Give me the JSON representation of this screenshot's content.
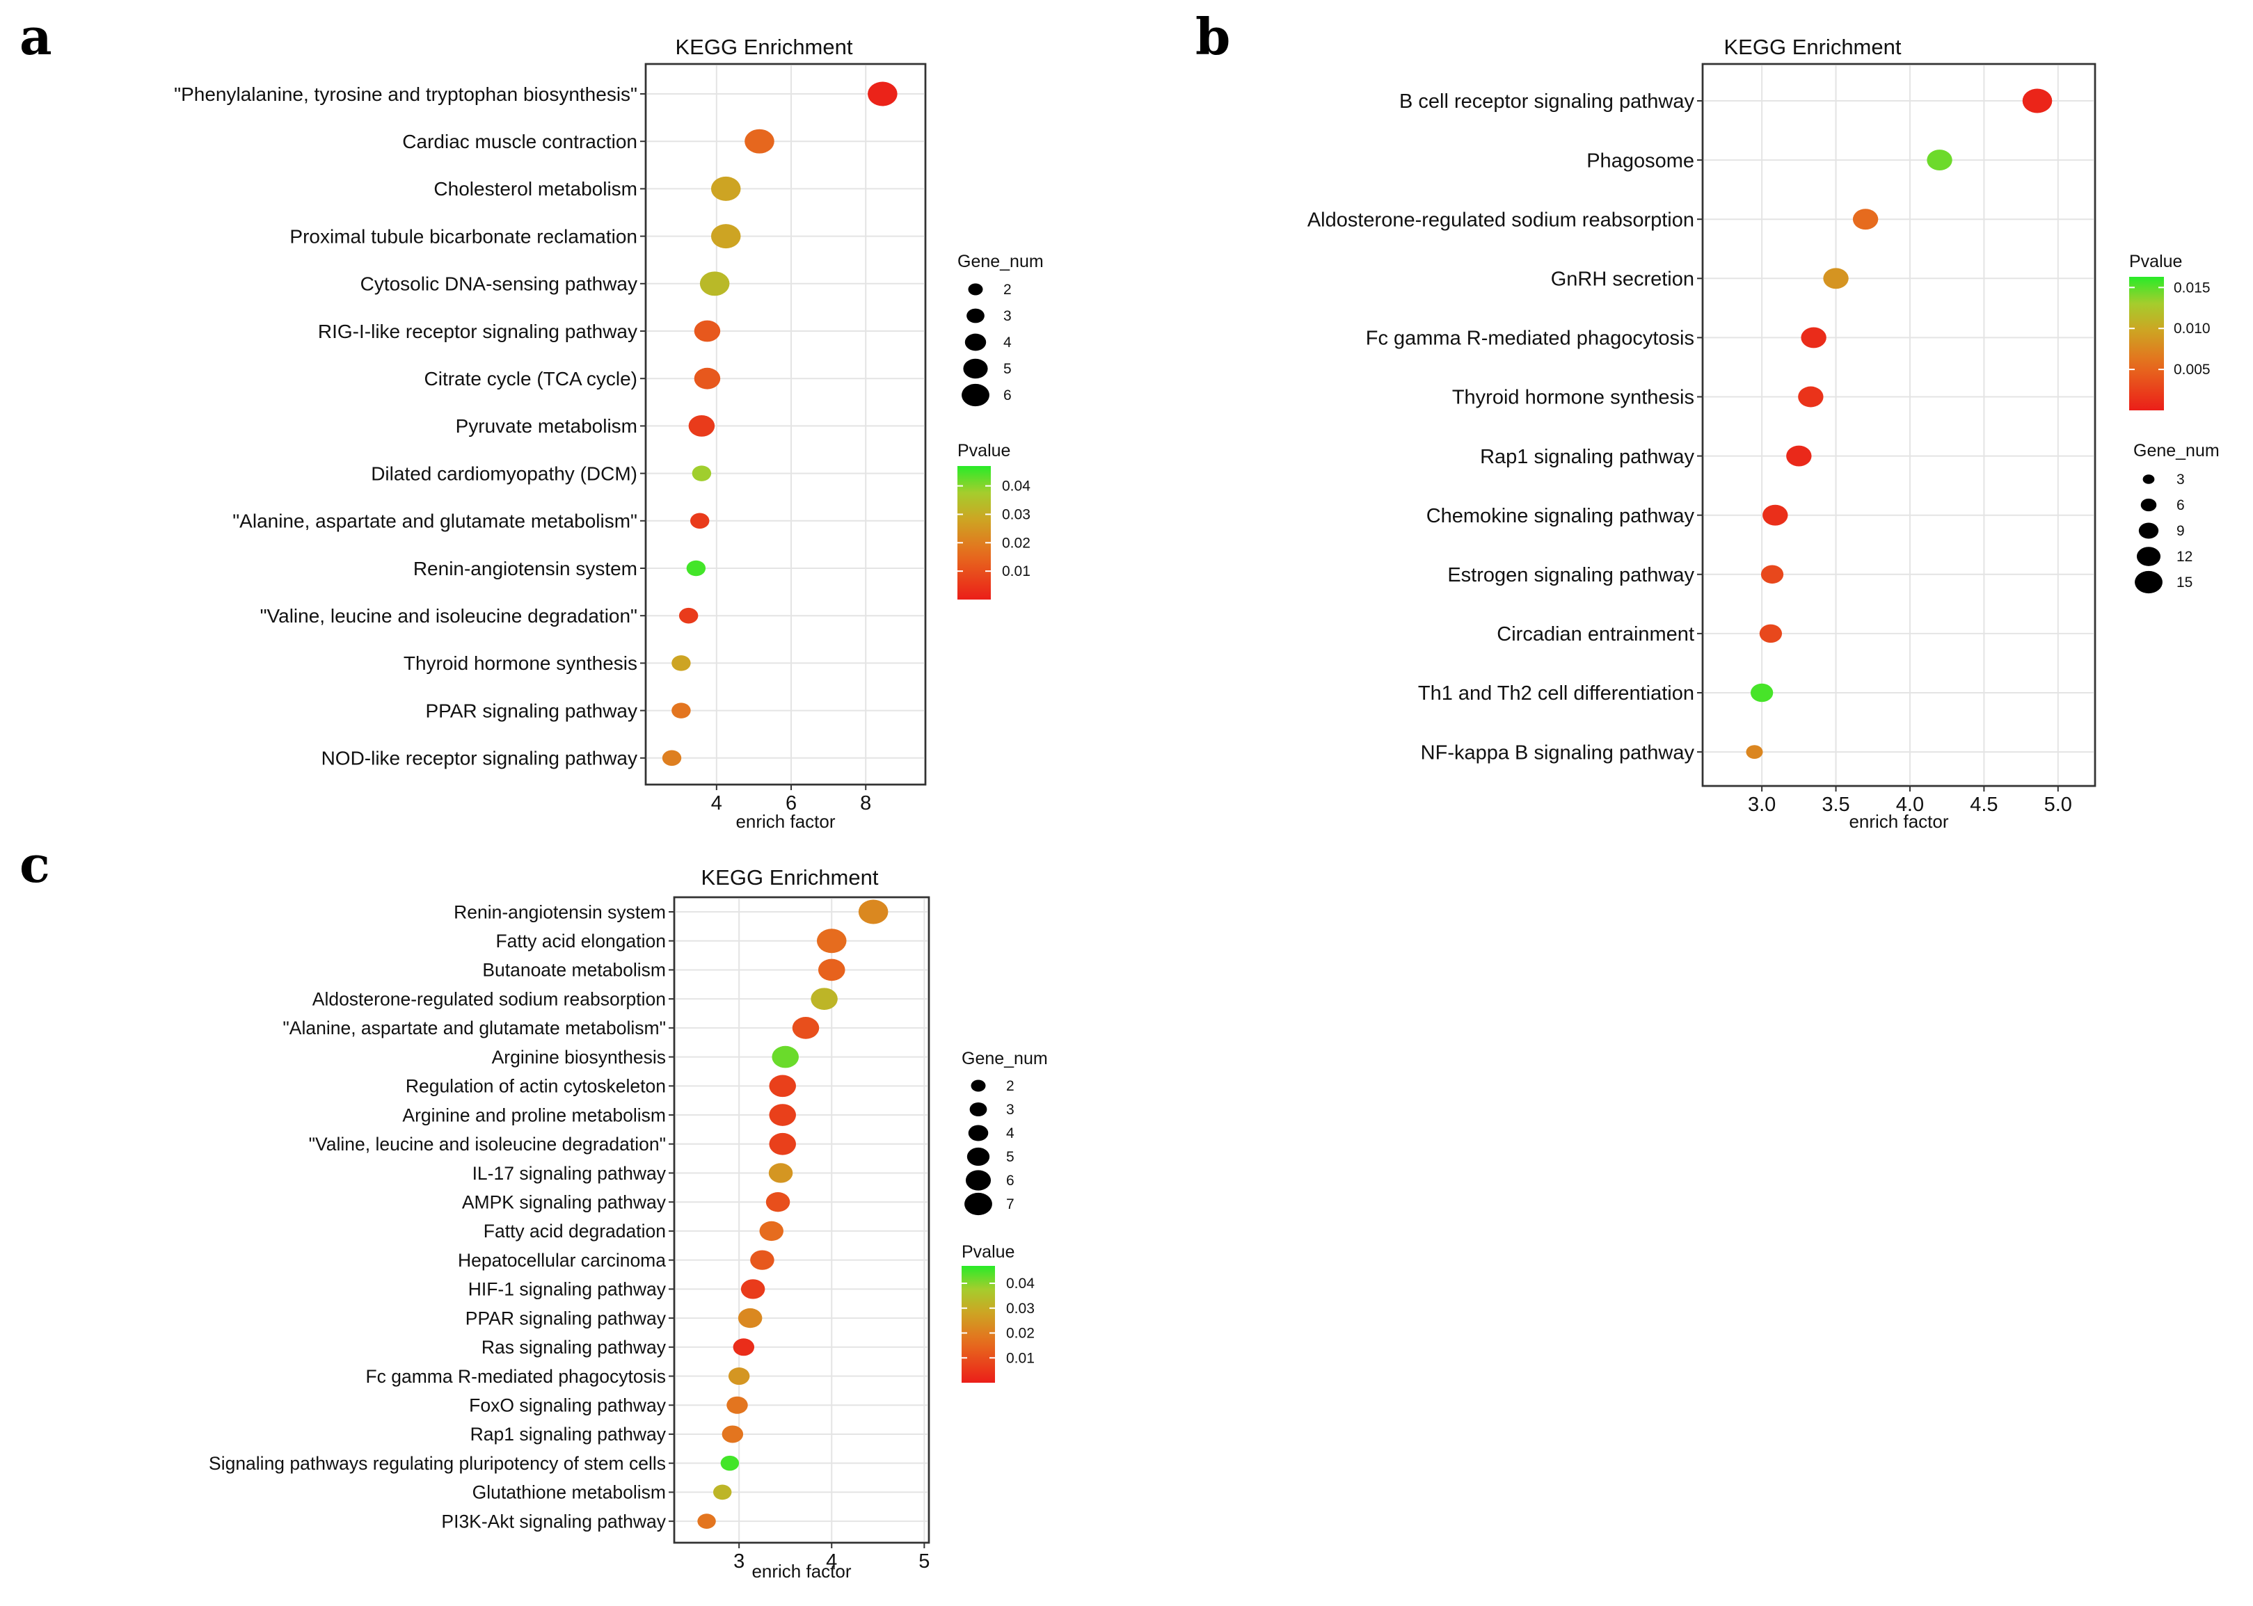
{
  "chart_data": [
    {
      "panel": "a",
      "type": "scatter",
      "title": "KEGG Enrichment",
      "xlabel": "enrich factor",
      "ylabel": "",
      "xlim": [
        2.1,
        9.6
      ],
      "xticks": [
        "4",
        "6",
        "8"
      ],
      "xtick_values": [
        4,
        6,
        8
      ],
      "categories": [
        "\"Phenylalanine, tyrosine and tryptophan biosynthesis\"",
        "Cardiac muscle contraction",
        "Cholesterol metabolism",
        "Proximal tubule bicarbonate reclamation",
        "Cytosolic DNA-sensing pathway",
        "RIG-I-like receptor signaling pathway",
        "Citrate cycle (TCA cycle)",
        "Pyruvate metabolism",
        "Dilated cardiomyopathy (DCM)",
        "\"Alanine, aspartate and glutamate metabolism\"",
        "Renin-angiotensin system",
        "\"Valine, leucine and isoleucine degradation\"",
        "Thyroid hormone synthesis",
        "PPAR signaling pathway",
        "NOD-like receptor signaling pathway"
      ],
      "enrich_factor": [
        8.45,
        5.15,
        4.25,
        4.25,
        3.95,
        3.75,
        3.75,
        3.6,
        3.6,
        3.55,
        3.45,
        3.25,
        3.05,
        3.05,
        2.8
      ],
      "gene_num": [
        6,
        6,
        6,
        6,
        6,
        5,
        5,
        5,
        3,
        3,
        3,
        3,
        3,
        3,
        3
      ],
      "pvalue": [
        0.001,
        0.015,
        0.028,
        0.028,
        0.033,
        0.012,
        0.012,
        0.006,
        0.038,
        0.006,
        0.045,
        0.006,
        0.028,
        0.018,
        0.02
      ],
      "legend_size": {
        "title": "Gene_num",
        "labels": [
          "2",
          "3",
          "4",
          "5",
          "6"
        ],
        "values": [
          2,
          3,
          4,
          5,
          6
        ]
      },
      "legend_color": {
        "title": "Pvalue",
        "labels": [
          "0.04",
          "0.03",
          "0.02",
          "0.01"
        ],
        "values": [
          0.04,
          0.03,
          0.02,
          0.01
        ],
        "range": [
          0.0,
          0.047
        ]
      },
      "grid": true,
      "legend_position": "right"
    },
    {
      "panel": "b",
      "type": "scatter",
      "title": "KEGG Enrichment",
      "xlabel": "enrich factor",
      "ylabel": "",
      "xlim": [
        2.6,
        5.25
      ],
      "xticks": [
        "3.0",
        "3.5",
        "4.0",
        "4.5",
        "5.0"
      ],
      "xtick_values": [
        3.0,
        3.5,
        4.0,
        4.5,
        5.0
      ],
      "categories": [
        "B cell receptor signaling pathway",
        "Phagosome",
        "Aldosterone-regulated sodium reabsorption",
        "GnRH secretion",
        "Fc gamma R-mediated phagocytosis",
        "Thyroid hormone synthesis",
        "Rap1 signaling pathway",
        "Chemokine signaling pathway",
        "Estrogen signaling pathway",
        "Circadian entrainment",
        "Th1 and Th2 cell differentiation",
        "NF-kappa B signaling pathway"
      ],
      "enrich_factor": [
        4.86,
        4.2,
        3.7,
        3.5,
        3.35,
        3.33,
        3.25,
        3.09,
        3.07,
        3.06,
        3.0,
        2.95
      ],
      "gene_num": [
        15,
        12,
        12,
        12,
        12,
        12,
        12,
        12,
        10,
        10,
        10,
        6
      ],
      "pvalue": [
        0.0005,
        0.0145,
        0.0055,
        0.0085,
        0.001,
        0.0015,
        0.0008,
        0.0012,
        0.003,
        0.003,
        0.0155,
        0.0075
      ],
      "legend_size": {
        "title": "Gene_num",
        "labels": [
          "3",
          "6",
          "9",
          "12",
          "15"
        ],
        "values": [
          3,
          6,
          9,
          12,
          15
        ]
      },
      "legend_color": {
        "title": "Pvalue",
        "labels": [
          "0.015",
          "0.010",
          "0.005"
        ],
        "values": [
          0.015,
          0.01,
          0.005
        ],
        "range": [
          0.0,
          0.0163
        ]
      },
      "grid": true,
      "legend_position": "right"
    },
    {
      "panel": "c",
      "type": "scatter",
      "title": "KEGG Enrichment",
      "xlabel": "enrich factor",
      "ylabel": "",
      "xlim": [
        2.3,
        5.05
      ],
      "xticks": [
        "3",
        "4",
        "5"
      ],
      "xtick_values": [
        3,
        4,
        5
      ],
      "categories": [
        "Renin-angiotensin system",
        "Fatty acid elongation",
        "Butanoate metabolism",
        "Aldosterone-regulated sodium reabsorption",
        "\"Alanine, aspartate and glutamate metabolism\"",
        "Arginine biosynthesis",
        "Regulation of actin cytoskeleton",
        "Arginine and proline metabolism",
        "\"Valine, leucine and isoleucine degradation\"",
        "IL-17 signaling pathway",
        "AMPK signaling pathway",
        "Fatty acid degradation",
        "Hepatocellular carcinoma",
        "HIF-1 signaling pathway",
        "PPAR signaling pathway",
        "Ras signaling pathway",
        "Fc gamma R-mediated phagocytosis",
        "FoxO signaling pathway",
        "Rap1 signaling pathway",
        "Signaling pathways regulating pluripotency of stem cells",
        "Glutathione metabolism",
        "PI3K-Akt signaling pathway"
      ],
      "enrich_factor": [
        4.45,
        4.0,
        4.0,
        3.92,
        3.72,
        3.5,
        3.47,
        3.47,
        3.47,
        3.45,
        3.42,
        3.35,
        3.25,
        3.15,
        3.12,
        3.05,
        3.0,
        2.98,
        2.93,
        2.9,
        2.82,
        2.65
      ],
      "gene_num": [
        7,
        7,
        6,
        6,
        6,
        6,
        6,
        6,
        6,
        5,
        5,
        5,
        5,
        5,
        5,
        4,
        4,
        4,
        4,
        3,
        3,
        3
      ],
      "pvalue": [
        0.022,
        0.016,
        0.014,
        0.032,
        0.01,
        0.042,
        0.007,
        0.007,
        0.007,
        0.025,
        0.01,
        0.016,
        0.012,
        0.006,
        0.022,
        0.003,
        0.025,
        0.018,
        0.018,
        0.045,
        0.032,
        0.018
      ],
      "legend_size": {
        "title": "Gene_num",
        "labels": [
          "2",
          "3",
          "4",
          "5",
          "6",
          "7"
        ],
        "values": [
          2,
          3,
          4,
          5,
          6,
          7
        ]
      },
      "legend_color": {
        "title": "Pvalue",
        "labels": [
          "0.04",
          "0.03",
          "0.02",
          "0.01"
        ],
        "values": [
          0.04,
          0.03,
          0.02,
          0.01
        ],
        "range": [
          0.0,
          0.047
        ]
      },
      "grid": true,
      "legend_position": "right"
    }
  ]
}
